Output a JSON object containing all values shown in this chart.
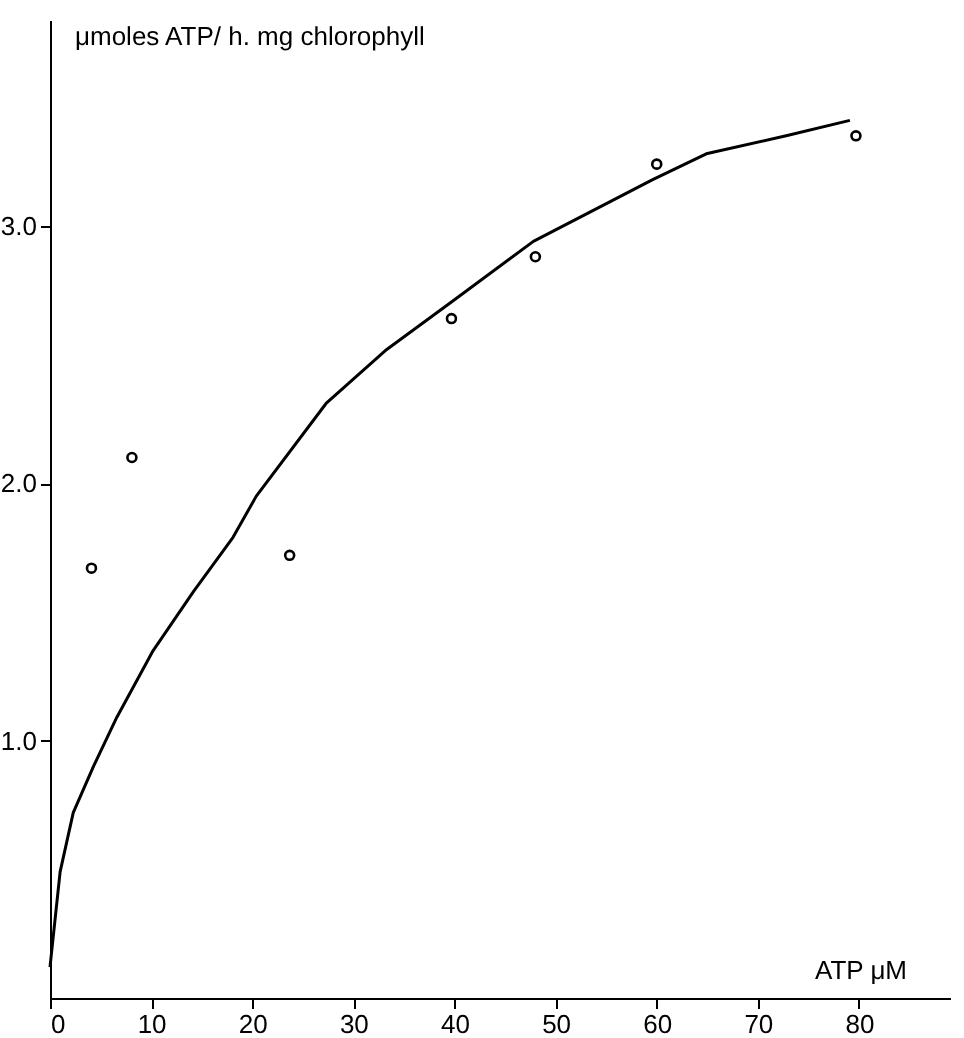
{
  "chart_data": {
    "type": "scatter",
    "xlabel": "ATP μM",
    "ylabel": "μmoles ATP/ h. mg chlorophyll",
    "xlim": [
      0,
      89
    ],
    "ylim": [
      0,
      3.8
    ],
    "xticks": [
      0,
      10,
      20,
      30,
      40,
      50,
      60,
      70,
      80
    ],
    "yticks": [
      {
        "value": 1,
        "label": "1.0"
      },
      {
        "value": 2,
        "label": "2.0"
      },
      {
        "value": 3,
        "label": "3.0"
      }
    ],
    "grid": false,
    "series": [
      {
        "marker": "circle",
        "color": "#000000",
        "x": [
          4.1,
          8.1,
          23.7,
          39.7,
          48.0,
          60.0,
          79.7
        ],
        "values": [
          1.67,
          2.1,
          1.72,
          2.64,
          2.88,
          3.24,
          3.35
        ]
      },
      {
        "type": "line",
        "marker": "none",
        "line_style": "solid",
        "color": "#000000",
        "x": [
          0,
          1.0,
          2.3,
          4.3,
          6.6,
          10.2,
          14.2,
          18.1,
          20.4,
          27.3,
          33.3,
          39.9,
          47.8,
          59.6,
          64.9,
          72.8,
          79.1
        ],
        "values": [
          0.12,
          0.49,
          0.72,
          0.9,
          1.09,
          1.35,
          1.58,
          1.79,
          1.95,
          2.31,
          2.52,
          2.71,
          2.94,
          3.18,
          3.28,
          3.35,
          3.41
        ]
      }
    ]
  }
}
